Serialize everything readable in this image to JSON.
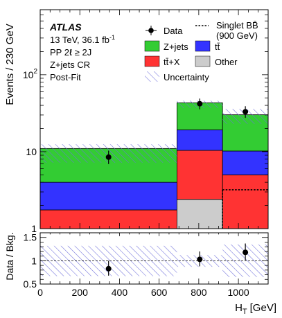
{
  "chart_data": {
    "type": "bar",
    "stacked": true,
    "log_scale_main": true,
    "xlabel": "H",
    "xlabel_sub": "T",
    "xlabel_unit": "[GeV]",
    "ylabel_main": "Events / 230 GeV",
    "ylabel_ratio": "Data / Bkg.",
    "x_range": [
      0,
      1150
    ],
    "y_range_main": [
      1,
      700
    ],
    "y_range_ratio": [
      0.5,
      1.6
    ],
    "x_ticks": [
      "0",
      "200",
      "400",
      "600",
      "800",
      "1000"
    ],
    "x_tick_values": [
      0,
      200,
      400,
      600,
      800,
      1000
    ],
    "y_ticks_main": [
      {
        "value": 1,
        "label": "1",
        "exp": ""
      },
      {
        "value": 10,
        "label": "10",
        "exp": ""
      },
      {
        "value": 100,
        "label": "10",
        "exp": "2"
      }
    ],
    "y_ticks_ratio": [
      {
        "value": 0.5,
        "label": "0.5"
      },
      {
        "value": 1,
        "label": "1"
      },
      {
        "value": 1.5,
        "label": "1.5"
      }
    ],
    "bin_edges": [
      0,
      690,
      920,
      1150
    ],
    "stack_bottom": 1,
    "series": [
      {
        "name": "Other",
        "color": "#cccccc",
        "values": [
          0.0,
          1.4,
          0.0
        ]
      },
      {
        "name": "tt̄+X",
        "color": "#ff3333",
        "values": [
          0.75,
          8.0,
          4.0
        ]
      },
      {
        "name": "tt̄",
        "color": "#3333ff",
        "values": [
          2.25,
          8.8,
          5.2
        ]
      },
      {
        "name": "Z+jets",
        "color": "#33cc33",
        "values": [
          7.0,
          24.0,
          20.0
        ]
      }
    ],
    "uncertainty_main": {
      "name": "Uncertainty",
      "low": [
        7.2,
        37.0,
        23.0
      ],
      "high": [
        12.5,
        46.0,
        36.0
      ]
    },
    "signal": {
      "name_line1": "Singlet BB̄",
      "name_line2": "(900 GeV)",
      "values": [
        0.0,
        0.0,
        2.2
      ],
      "bin_start": 920
    },
    "data": {
      "name": "Data",
      "x": [
        345,
        805,
        1035
      ],
      "y": [
        8.5,
        42.0,
        33.0
      ],
      "err_low": [
        1.6,
        6.5,
        5.5
      ],
      "err_high": [
        1.8,
        7.0,
        6.0
      ]
    },
    "ratio": {
      "x": [
        345,
        805,
        1035
      ],
      "y": [
        0.83,
        1.03,
        1.18
      ],
      "err_low": [
        0.15,
        0.15,
        0.17
      ],
      "err_high": [
        0.17,
        0.17,
        0.19
      ],
      "band_low": [
        0.67,
        0.87,
        0.65
      ],
      "band_high": [
        1.32,
        1.12,
        1.35
      ]
    },
    "annotations": {
      "atlas": "ATLAS",
      "line1": "13 TeV, 36.1 fb",
      "line1_sup": "-1",
      "line2": "PP 2ℓ ≥ 2J",
      "line3": "Z+jets CR",
      "line4": "Post-Fit"
    },
    "legend_position": "top-right"
  }
}
